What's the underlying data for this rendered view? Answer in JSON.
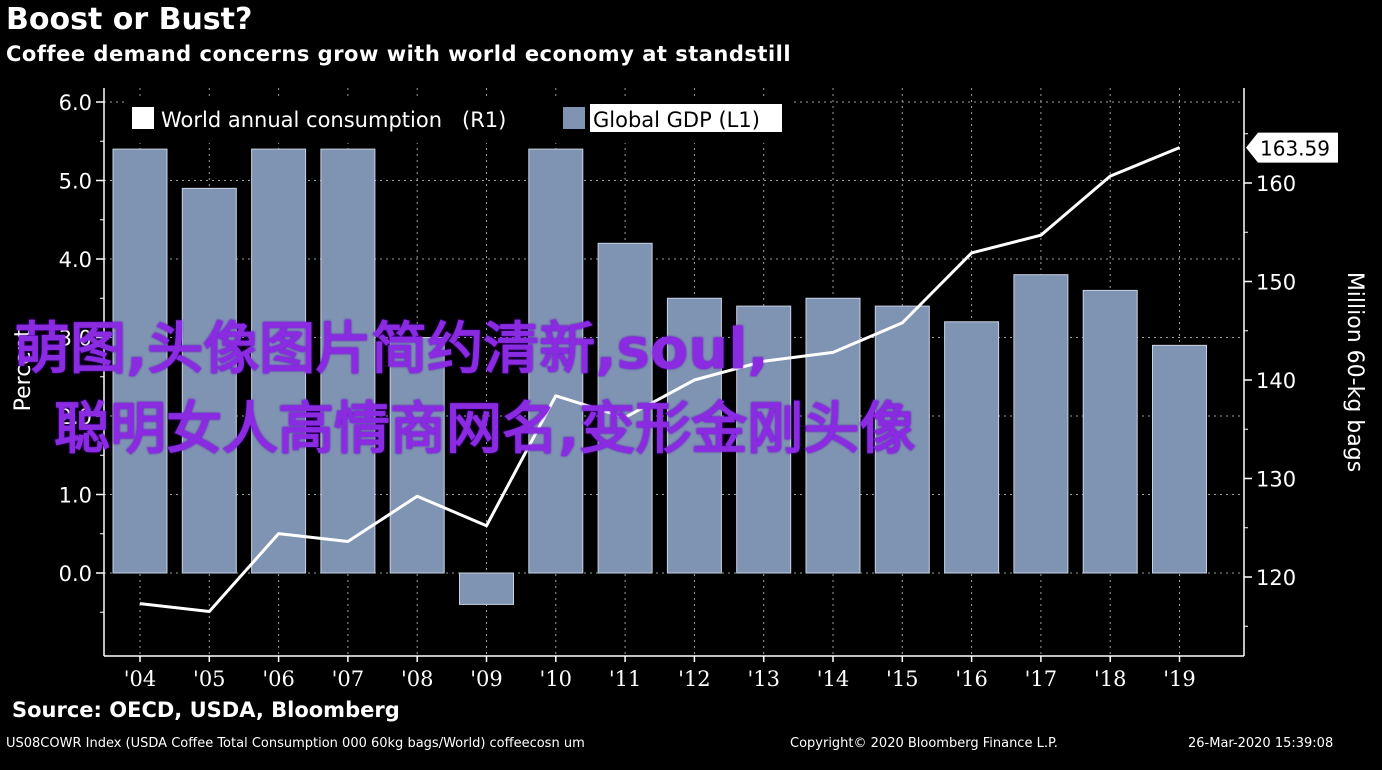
{
  "header": {
    "title": "Boost or Bust?",
    "subtitle": "Coffee demand concerns grow with world economy at standstill"
  },
  "colors": {
    "background": "#000000",
    "bar": "#7f93b2",
    "line": "#ffffff",
    "grid": "#9aa0a6",
    "watermark": "#8a2be2"
  },
  "chart_data": {
    "type": "bar",
    "categories": [
      "'04",
      "'05",
      "'06",
      "'07",
      "'08",
      "'09",
      "'10",
      "'11",
      "'12",
      "'13",
      "'14",
      "'15",
      "'16",
      "'17",
      "'18",
      "'19"
    ],
    "series": [
      {
        "name": "Global GDP (L1)",
        "type": "bar",
        "axis": "left",
        "values": [
          5.4,
          4.9,
          5.4,
          5.4,
          3.0,
          -0.4,
          5.4,
          4.2,
          3.5,
          3.4,
          3.5,
          3.4,
          3.2,
          3.8,
          3.6,
          2.9
        ]
      },
      {
        "name": "World annual consumption (R1)",
        "type": "line",
        "axis": "right",
        "values": [
          117.3,
          116.5,
          124.4,
          123.6,
          128.2,
          125.2,
          138.4,
          136.2,
          140.0,
          141.9,
          142.8,
          145.8,
          152.9,
          154.7,
          160.7,
          163.59
        ]
      }
    ],
    "left_axis": {
      "ticks": [
        "6.0",
        "5.0",
        "4.0",
        "3.0",
        "2.0",
        "1.0",
        "0.0"
      ],
      "label": "Percent",
      "range": [
        -1.0,
        6.0
      ]
    },
    "right_axis": {
      "ticks": [
        "160",
        "150",
        "140",
        "130",
        "120"
      ],
      "label": "Million 60-kg bags",
      "range": [
        112,
        172
      ]
    },
    "last_value_label": "163.59",
    "legend": {
      "position": "top-left",
      "items": [
        "World annual consumption   (R1)",
        "Global GDP (L1)"
      ]
    },
    "grid": true
  },
  "footer": {
    "source": "Source: OECD, USDA, Bloomberg",
    "ticker": "US08COWR Index (USDA Coffee Total Consumption 000 60kg bags/World) coffeecosn um",
    "copyright": "Copyright© 2020 Bloomberg Finance L.P.",
    "timestamp": "26-Mar-2020 15:39:08"
  },
  "watermark": {
    "line1": "萌图,头像图片简约清新,soul,",
    "line2": "聪明女人高情商网名,变形金刚头像"
  }
}
